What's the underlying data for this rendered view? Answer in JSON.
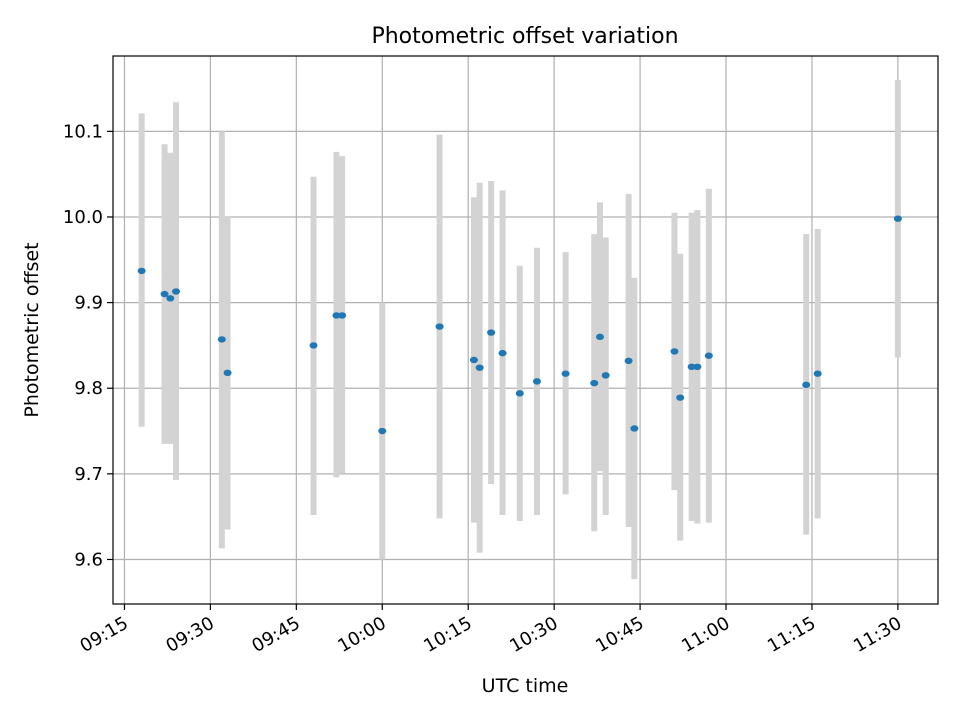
{
  "chart_data": {
    "type": "scatter",
    "title": "Photometric offset variation",
    "xlabel": "UTC time",
    "ylabel": "Photometric offset",
    "x_ticks": [
      "09:15",
      "09:30",
      "09:45",
      "10:00",
      "10:15",
      "10:30",
      "10:45",
      "11:00",
      "11:15",
      "11:30"
    ],
    "y_ticks": [
      "9.6",
      "9.7",
      "9.8",
      "9.9",
      "10.0",
      "10.1"
    ],
    "xlim": [
      "09:13",
      "11:37"
    ],
    "ylim": [
      9.548,
      10.188
    ],
    "grid": true,
    "marker_color": "#1f77b4",
    "errorbar_color": "#d3d3d3",
    "points": [
      {
        "t": "09:18",
        "y": 9.937,
        "lo": 9.755,
        "hi": 10.121
      },
      {
        "t": "09:22",
        "y": 9.91,
        "lo": 9.735,
        "hi": 10.085
      },
      {
        "t": "09:23",
        "y": 9.905,
        "lo": 9.735,
        "hi": 10.075
      },
      {
        "t": "09:24",
        "y": 9.913,
        "lo": 9.693,
        "hi": 10.134
      },
      {
        "t": "09:32",
        "y": 9.857,
        "lo": 9.613,
        "hi": 10.1
      },
      {
        "t": "09:33",
        "y": 9.818,
        "lo": 9.635,
        "hi": 10.001
      },
      {
        "t": "09:48",
        "y": 9.85,
        "lo": 9.652,
        "hi": 10.047
      },
      {
        "t": "09:52",
        "y": 9.885,
        "lo": 9.696,
        "hi": 10.076
      },
      {
        "t": "09:53",
        "y": 9.885,
        "lo": 9.701,
        "hi": 10.071
      },
      {
        "t": "10:00",
        "y": 9.75,
        "lo": 9.6,
        "hi": 9.9
      },
      {
        "t": "10:10",
        "y": 9.872,
        "lo": 9.648,
        "hi": 10.096
      },
      {
        "t": "10:16",
        "y": 9.833,
        "lo": 9.643,
        "hi": 10.023
      },
      {
        "t": "10:17",
        "y": 9.824,
        "lo": 9.608,
        "hi": 10.04
      },
      {
        "t": "10:19",
        "y": 9.865,
        "lo": 9.688,
        "hi": 10.042
      },
      {
        "t": "10:21",
        "y": 9.841,
        "lo": 9.652,
        "hi": 10.031
      },
      {
        "t": "10:24",
        "y": 9.794,
        "lo": 9.645,
        "hi": 9.943
      },
      {
        "t": "10:27",
        "y": 9.808,
        "lo": 9.652,
        "hi": 9.964
      },
      {
        "t": "10:32",
        "y": 9.817,
        "lo": 9.676,
        "hi": 9.959
      },
      {
        "t": "10:37",
        "y": 9.806,
        "lo": 9.633,
        "hi": 9.98
      },
      {
        "t": "10:38",
        "y": 9.86,
        "lo": 9.703,
        "hi": 10.017
      },
      {
        "t": "10:39",
        "y": 9.815,
        "lo": 9.652,
        "hi": 9.976
      },
      {
        "t": "10:43",
        "y": 9.832,
        "lo": 9.638,
        "hi": 10.027
      },
      {
        "t": "10:44",
        "y": 9.753,
        "lo": 9.577,
        "hi": 9.929
      },
      {
        "t": "10:51",
        "y": 9.843,
        "lo": 9.681,
        "hi": 10.005
      },
      {
        "t": "10:52",
        "y": 9.789,
        "lo": 9.622,
        "hi": 9.957
      },
      {
        "t": "10:54",
        "y": 9.825,
        "lo": 9.645,
        "hi": 10.005
      },
      {
        "t": "10:55",
        "y": 9.825,
        "lo": 9.642,
        "hi": 10.008
      },
      {
        "t": "10:57",
        "y": 9.838,
        "lo": 9.643,
        "hi": 10.033
      },
      {
        "t": "11:14",
        "y": 9.804,
        "lo": 9.629,
        "hi": 9.98
      },
      {
        "t": "11:16",
        "y": 9.817,
        "lo": 9.648,
        "hi": 9.986
      },
      {
        "t": "11:30",
        "y": 9.998,
        "lo": 9.836,
        "hi": 10.16
      }
    ]
  }
}
